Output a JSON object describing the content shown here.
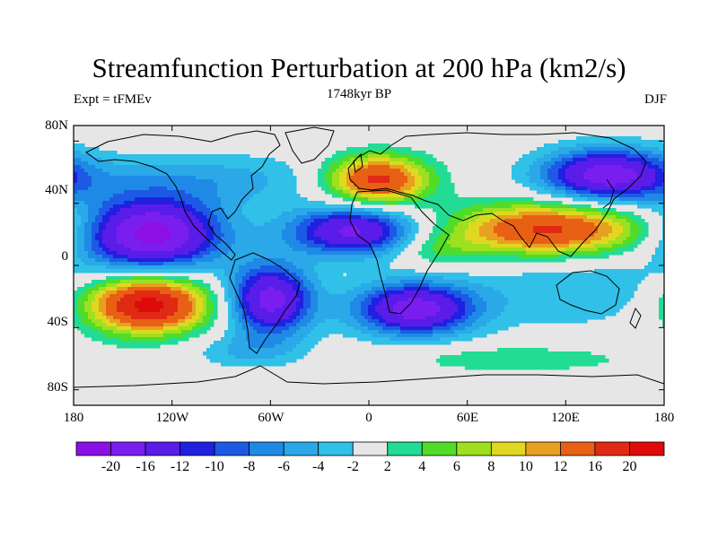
{
  "title": "Streamfunction Perturbation at 200 hPa (km2/s)",
  "subtitle_left": "Expt = tFMEv",
  "subtitle_center": "1748kyr BP",
  "subtitle_right": "DJF",
  "lat_ticks": [
    "80N",
    "40N",
    "0",
    "40S",
    "80S"
  ],
  "lon_ticks": [
    "180",
    "120W",
    "60W",
    "0",
    "60E",
    "120E",
    "180"
  ],
  "colorbar": {
    "labels": [
      "-20",
      "-16",
      "-12",
      "-10",
      "-8",
      "-6",
      "-4",
      "-2",
      "2",
      "4",
      "6",
      "8",
      "10",
      "12",
      "16",
      "20"
    ],
    "colors": [
      "#8c10e6",
      "#7a1ef0",
      "#5a1ce8",
      "#2020e0",
      "#1c5ae6",
      "#1e8ae6",
      "#2aa8e8",
      "#30c0e8",
      "#e6e6e6",
      "#22dc94",
      "#50dc28",
      "#9ee020",
      "#e0d820",
      "#e8a020",
      "#e86014",
      "#e02a14",
      "#e00a0a"
    ]
  },
  "field": {
    "background": "#e6e6e6",
    "features": [
      {
        "lon": -133,
        "lat": 20,
        "amp": -22,
        "slon": 30,
        "slat": 16
      },
      {
        "lon": -135,
        "lat": -25,
        "amp": 22,
        "slon": 26,
        "slat": 13
      },
      {
        "lon": -60,
        "lat": -22,
        "amp": -18,
        "slon": 18,
        "slat": 16
      },
      {
        "lon": -10,
        "lat": 22,
        "amp": -17,
        "slon": 27,
        "slat": 11
      },
      {
        "lon": 28,
        "lat": -28,
        "amp": -18,
        "slon": 26,
        "slat": 12
      },
      {
        "lon": 5,
        "lat": 55,
        "amp": 18,
        "slon": 22,
        "slat": 11
      },
      {
        "lon": 110,
        "lat": 23,
        "amp": 17,
        "slon": 42,
        "slat": 12
      },
      {
        "lon": 145,
        "lat": 58,
        "amp": -18,
        "slon": 28,
        "slat": 12
      },
      {
        "lon": -100,
        "lat": 55,
        "amp": -5,
        "slon": 60,
        "slat": 12
      },
      {
        "lon": 125,
        "lat": -15,
        "amp": -4,
        "slon": 45,
        "slat": 18
      },
      {
        "lon": 90,
        "lat": -60,
        "amp": 4,
        "slon": 50,
        "slat": 6
      },
      {
        "lon": -75,
        "lat": -55,
        "amp": -4,
        "slon": 25,
        "slat": 8
      },
      {
        "lon": 40,
        "lat": 10,
        "amp": 4,
        "slon": 18,
        "slat": 8
      }
    ]
  }
}
